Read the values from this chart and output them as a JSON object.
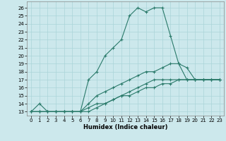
{
  "xlabel": "Humidex (Indice chaleur)",
  "bg_color": "#cce8ec",
  "line_color": "#2a7a6a",
  "grid_color": "#aad4d8",
  "series": [
    {
      "x": [
        0,
        1,
        2,
        3,
        4,
        5,
        6,
        7,
        8,
        9,
        10,
        11,
        12,
        13,
        14,
        15,
        16,
        17,
        18,
        19,
        20,
        21,
        22,
        23
      ],
      "y": [
        13,
        14,
        13,
        13,
        13,
        13,
        13,
        17,
        18,
        20,
        21,
        22,
        25,
        26,
        25.5,
        26,
        26,
        22.5,
        19,
        18.5,
        17,
        17,
        17,
        17
      ]
    },
    {
      "x": [
        0,
        1,
        2,
        3,
        4,
        5,
        6,
        7,
        8,
        9,
        10,
        11,
        12,
        13,
        14,
        15,
        16,
        17,
        18,
        19,
        20,
        21,
        22,
        23
      ],
      "y": [
        13,
        13,
        13,
        13,
        13,
        13,
        13,
        14,
        15,
        15.5,
        16,
        16.5,
        17,
        17.5,
        18,
        18,
        18.5,
        19,
        19,
        17,
        17,
        17,
        17,
        17
      ]
    },
    {
      "x": [
        0,
        1,
        2,
        3,
        4,
        5,
        6,
        7,
        8,
        9,
        10,
        11,
        12,
        13,
        14,
        15,
        16,
        17,
        18,
        19,
        20,
        21,
        22,
        23
      ],
      "y": [
        13,
        13,
        13,
        13,
        13,
        13,
        13,
        13,
        13.5,
        14,
        14.5,
        15,
        15.5,
        16,
        16.5,
        17,
        17,
        17,
        17,
        17,
        17,
        17,
        17,
        17
      ]
    },
    {
      "x": [
        0,
        1,
        2,
        3,
        4,
        5,
        6,
        7,
        8,
        9,
        10,
        11,
        12,
        13,
        14,
        15,
        16,
        17,
        18,
        19,
        20,
        21,
        22,
        23
      ],
      "y": [
        13,
        13,
        13,
        13,
        13,
        13,
        13,
        13.5,
        14,
        14,
        14.5,
        15,
        15,
        15.5,
        16,
        16,
        16.5,
        16.5,
        17,
        17,
        17,
        17,
        17,
        17
      ]
    }
  ],
  "xlim": [
    -0.5,
    23.5
  ],
  "ylim": [
    12.5,
    26.8
  ],
  "yticks": [
    13,
    14,
    15,
    16,
    17,
    18,
    19,
    20,
    21,
    22,
    23,
    24,
    25,
    26
  ],
  "xticks": [
    0,
    1,
    2,
    3,
    4,
    5,
    6,
    7,
    8,
    9,
    10,
    11,
    12,
    13,
    14,
    15,
    16,
    17,
    18,
    19,
    20,
    21,
    22,
    23
  ],
  "marker": "+"
}
